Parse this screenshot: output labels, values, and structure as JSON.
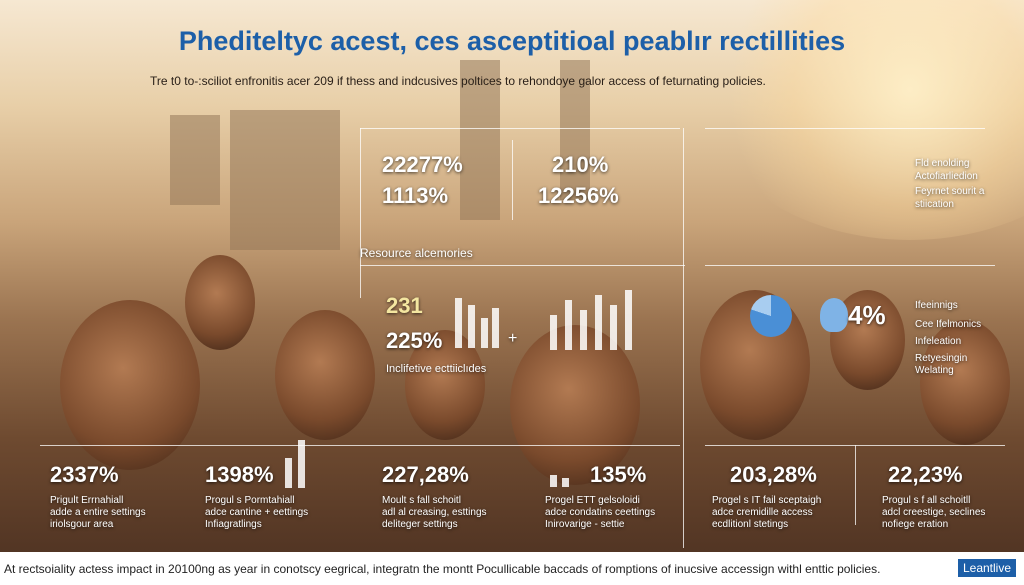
{
  "header": {
    "title": "Phediteltyc acest, ces asceptitioal peablır rectillities",
    "subtitle": "Tre t0 to-:sciliot enfronitis acer 209 if thess and indcusives poltices to rehondoye galor access of feturnating policies."
  },
  "top_stats": [
    "22277%",
    "1113%",
    "210%",
    "12256%"
  ],
  "middle": {
    "section_label": "Resource alcemories",
    "stat_a": "231",
    "stat_b": "225%",
    "plus": "+",
    "caption": "Inclifetive ecttiiclıdes"
  },
  "right_top_list": [
    "Fld enolding",
    "Actofiarliedion",
    "Feyrnet sourit a",
    "stiication"
  ],
  "right_middle": {
    "stat": "4%",
    "list": [
      "Ifeeinnigs",
      "Cee Ifelmonics",
      "Infeleation",
      "Retyesingin",
      "Welating"
    ]
  },
  "bottom_stats": [
    {
      "stat": "2337%",
      "lines": [
        "Prigult Errnahiall",
        "adde a entire settings",
        "iriolsgour area"
      ]
    },
    {
      "stat": "1398%",
      "lines": [
        "Progul s Pormtahiall",
        "adce cantine + eettings",
        "Infiagratlings"
      ]
    },
    {
      "stat": "227,28%",
      "lines": [
        "Moult s fall schoitl",
        "adl al creasing, esttings",
        "deliteger settings"
      ]
    },
    {
      "stat": "135%",
      "lines": [
        "Progel ETT gelsoloidi",
        "adce condatins ceettings",
        "Inirovarige - settie"
      ]
    },
    {
      "stat": "203,28%",
      "lines": [
        "Progel s IT fail sceptaigh",
        "adce cremidille access",
        "ecdlitionl stetings"
      ]
    },
    {
      "stat": "22,23%",
      "lines": [
        "Progul s f all schoitll",
        "adcl creestige, seclines",
        "nofiege eration"
      ]
    }
  ],
  "footer": {
    "text": "At rectsoiality actess impact in 20100ng as year in conotscy eegrical, integratn the montt Pocullicable baccads of romptions of inucsive accessign withl enttic policies.",
    "button": "Leantlive"
  }
}
